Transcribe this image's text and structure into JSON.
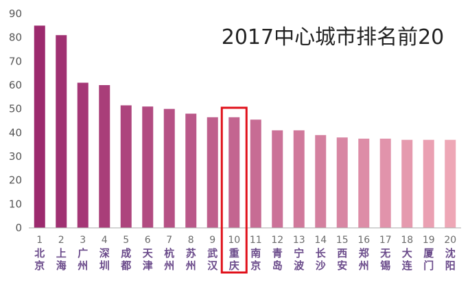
{
  "chart_data": {
    "type": "bar",
    "title": "2017中心城市排名前20",
    "ylim": [
      0,
      90
    ],
    "yticks": [
      0,
      10,
      20,
      30,
      40,
      50,
      60,
      70,
      80,
      90
    ],
    "grid": false,
    "legend": "none",
    "categories": [
      {
        "rank": "1",
        "city": [
          "北",
          "京"
        ]
      },
      {
        "rank": "2",
        "city": [
          "上",
          "海"
        ]
      },
      {
        "rank": "3",
        "city": [
          "广",
          "州"
        ]
      },
      {
        "rank": "4",
        "city": [
          "深",
          "圳"
        ]
      },
      {
        "rank": "5",
        "city": [
          "成",
          "都"
        ]
      },
      {
        "rank": "6",
        "city": [
          "天",
          "津"
        ]
      },
      {
        "rank": "7",
        "city": [
          "杭",
          "州"
        ]
      },
      {
        "rank": "8",
        "city": [
          "苏",
          "州"
        ]
      },
      {
        "rank": "9",
        "city": [
          "武",
          "汉"
        ]
      },
      {
        "rank": "10",
        "city": [
          "重",
          "庆"
        ]
      },
      {
        "rank": "11",
        "city": [
          "南",
          "京"
        ]
      },
      {
        "rank": "12",
        "city": [
          "青",
          "岛"
        ]
      },
      {
        "rank": "13",
        "city": [
          "宁",
          "波"
        ]
      },
      {
        "rank": "14",
        "city": [
          "长",
          "沙"
        ]
      },
      {
        "rank": "15",
        "city": [
          "西",
          "安"
        ]
      },
      {
        "rank": "16",
        "city": [
          "郑",
          "州"
        ]
      },
      {
        "rank": "17",
        "city": [
          "无",
          "锡"
        ]
      },
      {
        "rank": "18",
        "city": [
          "大",
          "连"
        ]
      },
      {
        "rank": "19",
        "city": [
          "厦",
          "门"
        ]
      },
      {
        "rank": "20",
        "city": [
          "沈",
          "阳"
        ]
      }
    ],
    "values": [
      85,
      81,
      61,
      60,
      51.5,
      51,
      50,
      48,
      46.5,
      46.5,
      45.5,
      41,
      41,
      39,
      38,
      37.5,
      37.5,
      37,
      37,
      37
    ],
    "highlight": {
      "index": 9,
      "color": "#e0101a"
    },
    "colors": {
      "start": "#9c2a6e",
      "end": "#eea7b6",
      "axis": "#aaaaaa"
    }
  }
}
